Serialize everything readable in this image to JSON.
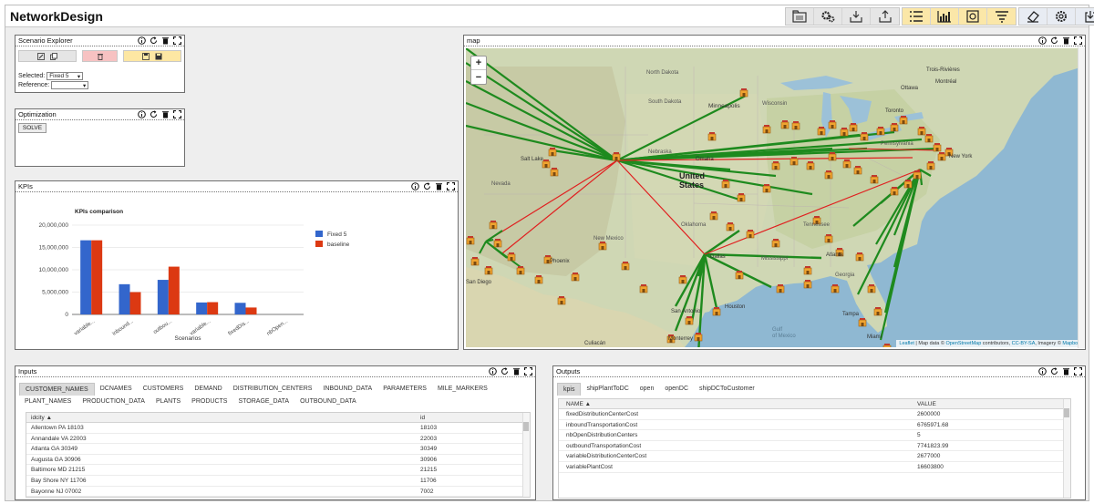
{
  "app": {
    "title": "NetworkDesign"
  },
  "toolbar": {
    "groups": [
      [
        "folder-icon",
        "gears-icon",
        "import-icon",
        "export-icon"
      ],
      [
        "list-icon",
        "bar-chart-icon",
        "report-icon",
        "filter-icon"
      ],
      [
        "eraser-icon",
        "settings-icon",
        "logout-icon"
      ]
    ]
  },
  "scenario": {
    "title": "Scenario Explorer",
    "selected_label": "Selected:",
    "selected_value": "Fixed 5",
    "reference_label": "Reference:",
    "reference_value": ""
  },
  "optimization": {
    "title": "Optimization",
    "solve_label": "SOLVE"
  },
  "kpis_panel": {
    "title": "KPIs"
  },
  "map_panel": {
    "title": "map",
    "zoom_in": "+",
    "zoom_out": "−",
    "labels": {
      "united_states": "United\nStates",
      "minneapolis": "Minneapolis",
      "omaha": "Omaha",
      "salt_lake": "Salt Lake",
      "dallas": "Dallas",
      "houston": "Houston",
      "atlanta": "Atlanta",
      "tampa": "Tampa",
      "miami": "Miami",
      "monterrey": "Monterrey",
      "gulf": "Gulf\nof Mexico",
      "wisconsin": "Wisconsin",
      "nebraska": "Nebraska",
      "nevada": "Nevada",
      "oklahoma": "Oklahoma",
      "mississippi": "Mississippi",
      "north_dakota": "North Dakota",
      "south_dakota": "South Dakota",
      "ottawa": "Ottawa",
      "montreal": "Montréal",
      "toronto": "Toronto",
      "new_york": "New York",
      "culiacan": "Culiacán",
      "san_diego": "San Diego",
      "phoenix": "Phoenix",
      "new_mexico": "New Mexico",
      "georgia": "Georgia",
      "tennessee": "Tennessee",
      "penn": "Pennsylvania",
      "trois": "Trois-Rivières",
      "san_antonio": "San Antonio"
    },
    "attribution_leaflet": "Leaflet",
    "attribution_text": " | Map data © ",
    "attribution_osm": "OpenStreetMap",
    "attribution_text2": " contributors, ",
    "attribution_cc": "CC-BY-SA",
    "attribution_text3": ", Imagery © ",
    "attribution_mapbox": "Mapbox"
  },
  "chart_data": {
    "type": "bar",
    "title": "KPIs comparison",
    "xlabel": "Scenarios",
    "ylabel": "",
    "categories": [
      "variable...",
      "inbound...",
      "outbou...",
      "variable...",
      "fixedDis...",
      "nbOpen..."
    ],
    "series": [
      {
        "name": "Fixed 5",
        "color": "#3366cc",
        "values": [
          16603800,
          6765971.68,
          7741823.99,
          2677000,
          2600000,
          5
        ]
      },
      {
        "name": "baseline",
        "color": "#dc3912",
        "values": [
          16603800,
          5000000,
          10700000,
          2750000,
          1550000,
          0
        ]
      }
    ],
    "ylim": [
      0,
      20000000
    ],
    "yticks": [
      "20,000,000",
      "15,000,000",
      "10,000,000",
      "5,000,000",
      "0"
    ],
    "legend": "right"
  },
  "inputs": {
    "title": "Inputs",
    "tabs": [
      "CUSTOMER_NAMES",
      "DCNAMES",
      "CUSTOMERS",
      "DEMAND",
      "DISTRIBUTION_CENTERS",
      "INBOUND_DATA",
      "PARAMETERS",
      "MILE_MARKERS",
      "PLANT_NAMES",
      "PRODUCTION_DATA",
      "PLANTS",
      "PRODUCTS",
      "STORAGE_DATA",
      "OUTBOUND_DATA"
    ],
    "active_tab": "CUSTOMER_NAMES",
    "columns": [
      "idcity",
      "id"
    ],
    "rows": [
      [
        "Allentown PA 18103",
        "18103"
      ],
      [
        "Annandale VA 22003",
        "22003"
      ],
      [
        "Atlanta GA 30349",
        "30349"
      ],
      [
        "Augusta GA 30906",
        "30906"
      ],
      [
        "Baltimore MD 21215",
        "21215"
      ],
      [
        "Bay Shore NY 11706",
        "11706"
      ],
      [
        "Bayonne NJ 07002",
        "7002"
      ]
    ]
  },
  "outputs": {
    "title": "Outputs",
    "tabs": [
      "kpis",
      "shipPlantToDC",
      "open",
      "openDC",
      "shipDCToCustomer"
    ],
    "active_tab": "kpis",
    "columns": [
      "NAME",
      "VALUE"
    ],
    "rows": [
      [
        "fixedDistributionCenterCost",
        "2600000"
      ],
      [
        "inboundTransportationCost",
        "6765971.68"
      ],
      [
        "nbOpenDistributionCenters",
        "5"
      ],
      [
        "outboundTransportationCost",
        "7741823.99"
      ],
      [
        "variableDistributionCenterCost",
        "2677000"
      ],
      [
        "variablePlantCost",
        "16603800"
      ]
    ]
  }
}
